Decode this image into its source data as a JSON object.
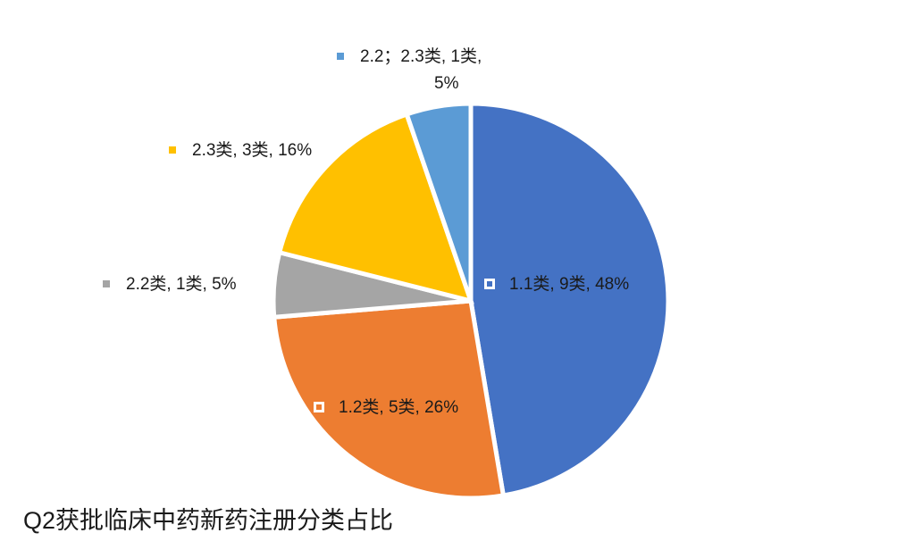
{
  "chart_data": {
    "type": "pie",
    "title": "Q2获批临床中药新药注册分类占比",
    "categories": [
      "1.1类",
      "1.2类",
      "2.2类",
      "2.3类",
      "2.2；2.3类"
    ],
    "values": [
      9,
      5,
      1,
      3,
      1
    ],
    "value_labels": [
      "1.1类, 9类, 48%",
      "1.2类, 5类, 26%",
      "2.2类, 1类, 5%",
      "2.3类, 3类, 16%",
      "2.2；2.3类, 1类,\n5%"
    ],
    "colors": [
      "#4472c4",
      "#ed7d31",
      "#a5a5a5",
      "#ffc000",
      "#5b9bd5"
    ]
  }
}
